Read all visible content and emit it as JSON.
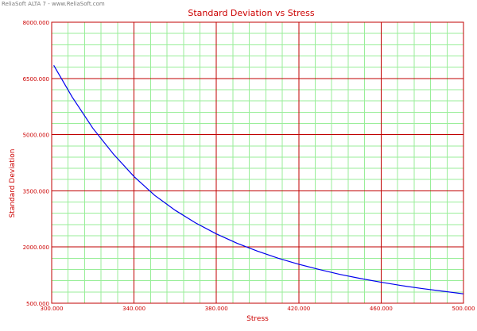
{
  "header": {
    "watermark": "ReliaSoft ALTA 7 - www.ReliaSoft.com"
  },
  "colors": {
    "major_grid": "#c00000",
    "minor_grid": "#99ee99",
    "curve": "#0000ee",
    "text": "#cc0000"
  },
  "chart_data": {
    "type": "line",
    "title": "Standard Deviation vs Stress",
    "xlabel": "Stress",
    "ylabel": "Standard Deviation",
    "xlim": [
      300,
      500
    ],
    "ylim": [
      500,
      8000
    ],
    "x_ticks": [
      "300.000",
      "340.000",
      "380.000",
      "420.000",
      "460.000",
      "500.000"
    ],
    "y_ticks": [
      "500.000",
      "2000.000",
      "3500.000",
      "5000.000",
      "6500.000",
      "8000.000"
    ],
    "grid": true,
    "series": [
      {
        "x": [
          301,
          310,
          320,
          330,
          340,
          350,
          360,
          370,
          380,
          390,
          400,
          410,
          420,
          430,
          440,
          450,
          460,
          470,
          480,
          490,
          500
        ],
        "values": [
          6850,
          6000,
          5170,
          4480,
          3880,
          3380,
          2980,
          2640,
          2350,
          2100,
          1890,
          1700,
          1540,
          1400,
          1270,
          1160,
          1060,
          970,
          890,
          820,
          750
        ]
      }
    ]
  }
}
